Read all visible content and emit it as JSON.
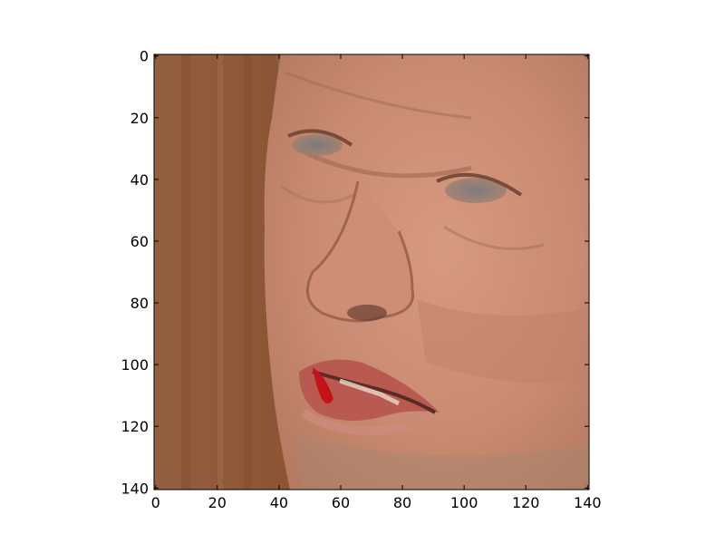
{
  "chart_data": {
    "type": "heatmap",
    "image_content": "cropped face photograph",
    "x_ticks": [
      0,
      20,
      40,
      60,
      80,
      100,
      120,
      140
    ],
    "y_ticks": [
      0,
      20,
      40,
      60,
      80,
      100,
      120,
      140
    ],
    "xlim": [
      -0.5,
      140.5
    ],
    "ylim": [
      140.5,
      -0.5
    ],
    "grid": false,
    "colors": {
      "background_wood": "#8a5432",
      "skin": "#c88a70",
      "lips": "#b85a50",
      "lip_blood": "#c4141a",
      "axis": "#000000"
    }
  }
}
